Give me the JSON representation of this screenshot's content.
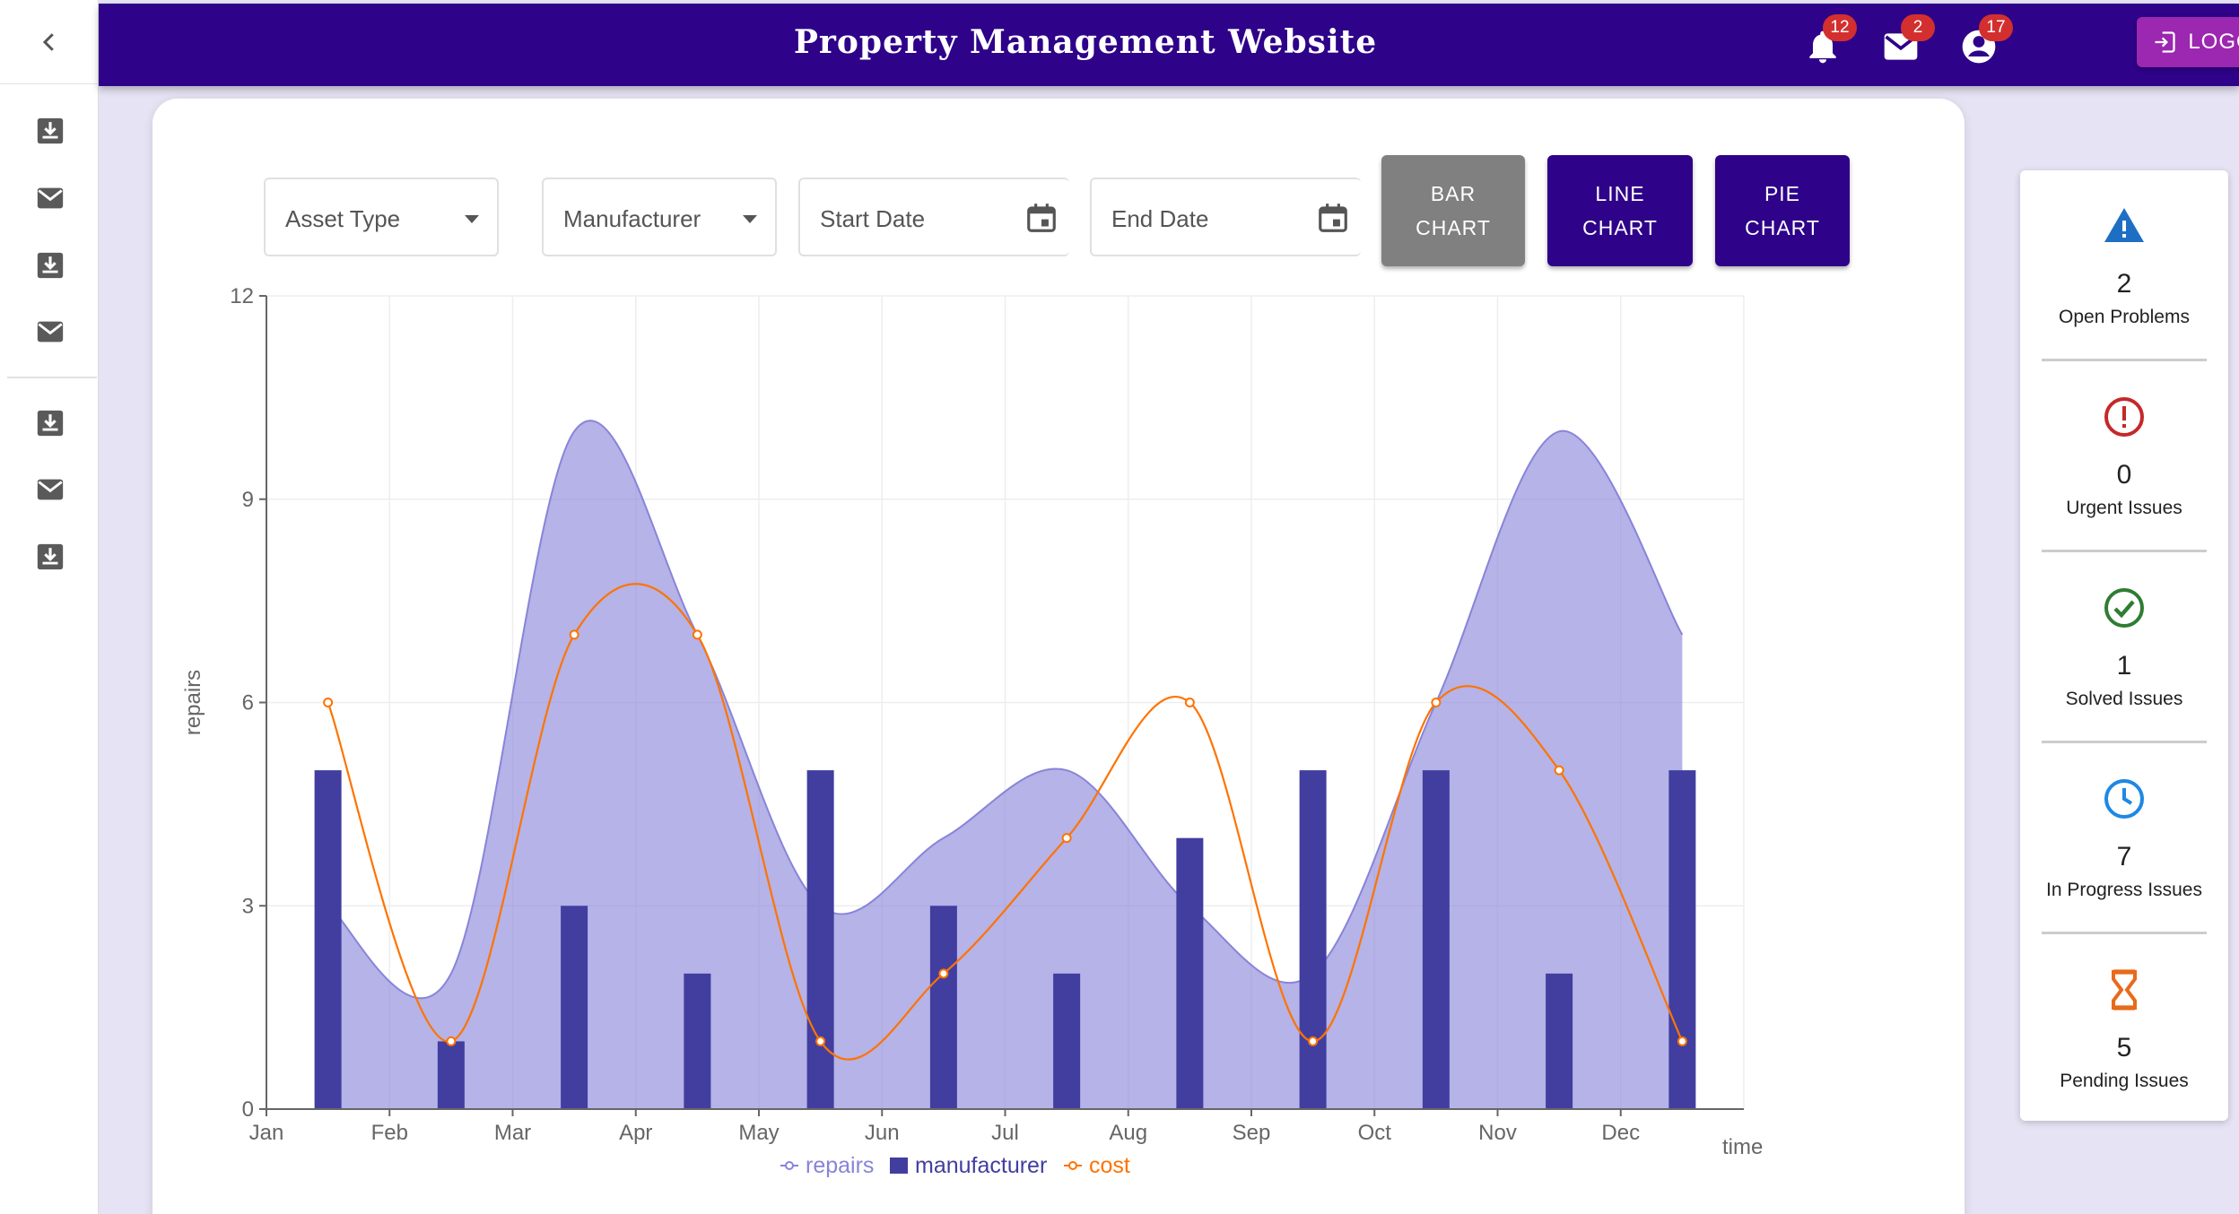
{
  "header": {
    "title": "Property Management Website",
    "notifications_count": "12",
    "mail_count": "2",
    "account_count": "17",
    "logout_label": "LOGOUT"
  },
  "sidebar": {
    "items": [
      {
        "icon": "download-box-icon"
      },
      {
        "icon": "mail-icon"
      },
      {
        "icon": "download-box-icon"
      },
      {
        "icon": "mail-icon"
      },
      {
        "icon": "download-box-icon"
      },
      {
        "icon": "mail-icon"
      },
      {
        "icon": "download-box-icon"
      }
    ]
  },
  "filters": {
    "asset_type": "Asset Type",
    "manufacturer": "Manufacturer",
    "start_date": "Start Date",
    "end_date": "End Date"
  },
  "chart_buttons": {
    "bar": [
      "BAR",
      "CHART"
    ],
    "line": [
      "LINE",
      "CHART"
    ],
    "pie": [
      "PIE",
      "CHART"
    ]
  },
  "colors": {
    "primary": "#2e0289",
    "logout": "#9c27b0",
    "bar_button_active": "#808080",
    "repairs": "#8884d8",
    "manufacturer": "#413ea0",
    "cost": "#ff7300"
  },
  "chart_data": {
    "type": "bar",
    "categories": [
      "Jan",
      "Feb",
      "Mar",
      "Apr",
      "May",
      "Jun",
      "Jul",
      "Aug",
      "Sep",
      "Oct",
      "Nov",
      "Dec"
    ],
    "xlabel": "time",
    "ylabel": "repairs",
    "ylim": [
      0,
      12
    ],
    "yticks": [
      0,
      3,
      6,
      9,
      12
    ],
    "series": [
      {
        "name": "repairs",
        "type": "area",
        "values": [
          3,
          2,
          10,
          7,
          3,
          4,
          5,
          3,
          2,
          6,
          10,
          7
        ]
      },
      {
        "name": "manufacturer",
        "type": "bar",
        "values": [
          5,
          1,
          3,
          2,
          5,
          3,
          2,
          4,
          5,
          5,
          2,
          5
        ]
      },
      {
        "name": "cost",
        "type": "line",
        "values": [
          6,
          1,
          7,
          7,
          1,
          2,
          4,
          6,
          1,
          6,
          5,
          1
        ]
      }
    ],
    "grid": true,
    "legend_position": "bottom"
  },
  "stats": [
    {
      "value": "2",
      "label": "Open Problems",
      "icon": "warning-icon",
      "color": "#1e6fc4"
    },
    {
      "value": "0",
      "label": "Urgent Issues",
      "icon": "error-icon",
      "color": "#c62828"
    },
    {
      "value": "1",
      "label": "Solved Issues",
      "icon": "check-circle-icon",
      "color": "#2e7d32"
    },
    {
      "value": "7",
      "label": "In Progress Issues",
      "icon": "clock-icon",
      "color": "#1e88e5"
    },
    {
      "value": "5",
      "label": "Pending Issues",
      "icon": "hourglass-icon",
      "color": "#e86a1b"
    }
  ]
}
